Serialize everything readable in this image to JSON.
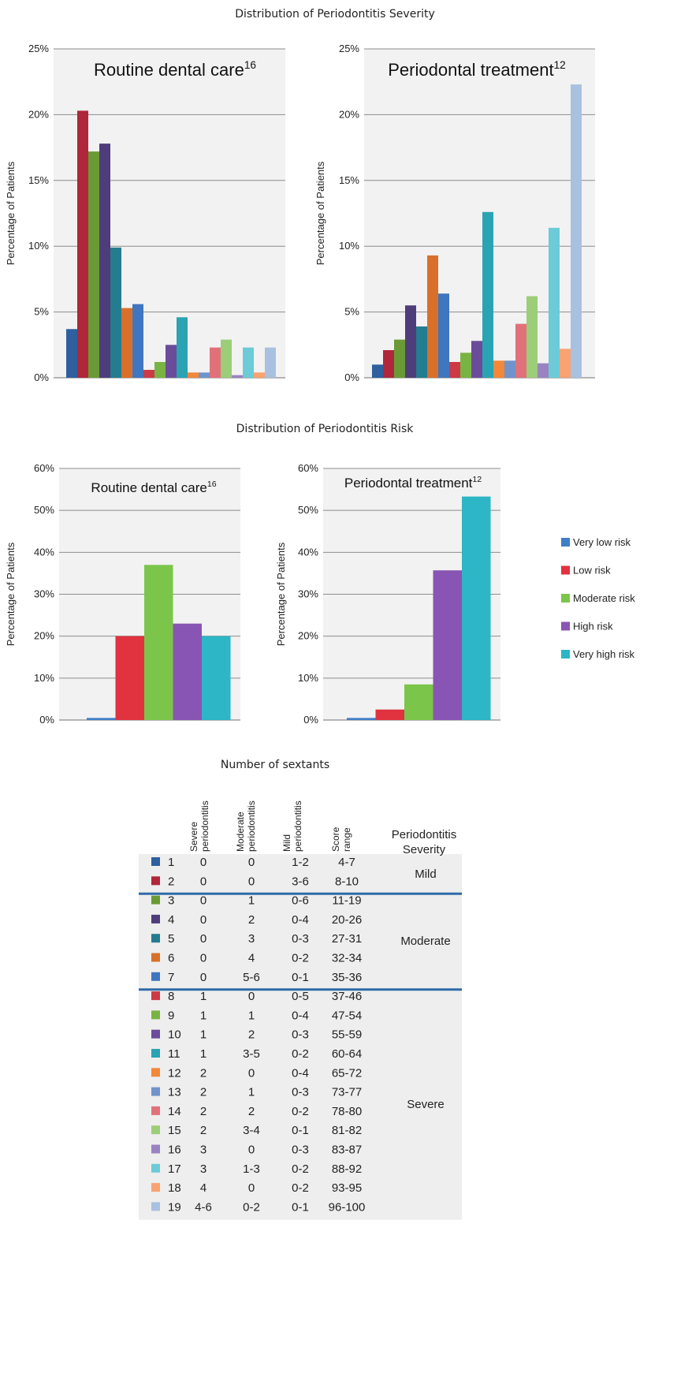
{
  "severity_title": "Distribution of Periodontitis Severity",
  "risk_title": "Distribution of Periodontitis Risk",
  "table_title": "Number of sextants",
  "y_axis_label": "Percentage of Patients",
  "colors": {
    "plot_bg": "#f2f2f2",
    "grid": "#8c8c8c",
    "table_band": "#eeeeee",
    "divider": "#2e6aa8",
    "category_colors": [
      "#2e5f9e",
      "#b0263a",
      "#6a9a36",
      "#4e3d7a",
      "#247d8e",
      "#d9702a",
      "#3f76c0",
      "#cc3a46",
      "#79b443",
      "#6b4c9a",
      "#2aa4b2",
      "#f28838",
      "#7093cb",
      "#e17179",
      "#9ccd78",
      "#9a83c1",
      "#6ccbd6",
      "#f9a272",
      "#a9c1e0"
    ],
    "risk_colors": [
      "#3f7fc8",
      "#e0323f",
      "#7cc54b",
      "#8855b4",
      "#2cb6c6"
    ]
  },
  "chart_data": [
    {
      "type": "bar",
      "title": "Distribution of Periodontitis Severity",
      "panel_title": "Routine dental care",
      "panel_sup": "16",
      "ylabel": "Percentage of Patients",
      "ylim": [
        0,
        25
      ],
      "yticks": [
        "0%",
        "5%",
        "10%",
        "15%",
        "20%",
        "25%"
      ],
      "grid": true,
      "categories": [
        "1",
        "2",
        "3",
        "4",
        "5",
        "6",
        "7",
        "8",
        "9",
        "10",
        "11",
        "12",
        "13",
        "14",
        "15",
        "16",
        "17",
        "18",
        "19"
      ],
      "values": [
        3.7,
        20.3,
        17.2,
        17.8,
        9.9,
        5.3,
        5.6,
        0.6,
        1.2,
        2.5,
        4.6,
        0.4,
        0.4,
        2.3,
        2.9,
        0.2,
        2.3,
        0.4,
        2.3
      ]
    },
    {
      "type": "bar",
      "title": "Distribution of Periodontitis Severity",
      "panel_title": "Periodontal treatment",
      "panel_sup": "12",
      "ylabel": "Percentage of Patients",
      "ylim": [
        0,
        25
      ],
      "yticks": [
        "0%",
        "5%",
        "10%",
        "15%",
        "20%",
        "25%"
      ],
      "grid": true,
      "categories": [
        "1",
        "2",
        "3",
        "4",
        "5",
        "6",
        "7",
        "8",
        "9",
        "10",
        "11",
        "12",
        "13",
        "14",
        "15",
        "16",
        "17",
        "18",
        "19"
      ],
      "values": [
        1.0,
        2.1,
        2.9,
        5.5,
        3.9,
        9.3,
        6.4,
        1.2,
        1.9,
        2.8,
        12.6,
        1.3,
        1.3,
        4.1,
        6.2,
        1.1,
        11.4,
        2.2,
        22.3
      ]
    },
    {
      "type": "bar",
      "title": "Distribution of Periodontitis Risk",
      "panel_title": "Routine dental care",
      "panel_sup": "16",
      "ylabel": "Percentage of Patients",
      "ylim": [
        0,
        60
      ],
      "yticks": [
        "0%",
        "10%",
        "20%",
        "30%",
        "40%",
        "50%",
        "60%"
      ],
      "grid": true,
      "categories": [
        "Very low risk",
        "Low risk",
        "Moderate risk",
        "High risk",
        "Very high risk"
      ],
      "values": [
        0.5,
        20.0,
        37.0,
        23.0,
        20.0
      ]
    },
    {
      "type": "bar",
      "title": "Distribution of Periodontitis Risk",
      "panel_title": "Periodontal treatment",
      "panel_sup": "12",
      "ylabel": "Percentage of Patients",
      "ylim": [
        0,
        60
      ],
      "yticks": [
        "0%",
        "10%",
        "20%",
        "30%",
        "40%",
        "50%",
        "60%"
      ],
      "grid": true,
      "categories": [
        "Very low risk",
        "Low risk",
        "Moderate risk",
        "High risk",
        "Very high risk"
      ],
      "values": [
        0.5,
        2.5,
        8.5,
        35.7,
        53.3
      ]
    },
    {
      "type": "table",
      "title": "Number of sextants",
      "columns": [
        "Severe periodontitis",
        "Moderate periodontitis",
        "Mild periodontitis",
        "Score range",
        "Periodontitis Severity"
      ],
      "rows": [
        {
          "id": "1",
          "severe": "0",
          "moderate": "0",
          "mild": "1-2",
          "score": "4-7"
        },
        {
          "id": "2",
          "severe": "0",
          "moderate": "0",
          "mild": "3-6",
          "score": "8-10"
        },
        {
          "id": "3",
          "severe": "0",
          "moderate": "1",
          "mild": "0-6",
          "score": "11-19"
        },
        {
          "id": "4",
          "severe": "0",
          "moderate": "2",
          "mild": "0-4",
          "score": "20-26"
        },
        {
          "id": "5",
          "severe": "0",
          "moderate": "3",
          "mild": "0-3",
          "score": "27-31"
        },
        {
          "id": "6",
          "severe": "0",
          "moderate": "4",
          "mild": "0-2",
          "score": "32-34"
        },
        {
          "id": "7",
          "severe": "0",
          "moderate": "5-6",
          "mild": "0-1",
          "score": "35-36"
        },
        {
          "id": "8",
          "severe": "1",
          "moderate": "0",
          "mild": "0-5",
          "score": "37-46"
        },
        {
          "id": "9",
          "severe": "1",
          "moderate": "1",
          "mild": "0-4",
          "score": "47-54"
        },
        {
          "id": "10",
          "severe": "1",
          "moderate": "2",
          "mild": "0-3",
          "score": "55-59"
        },
        {
          "id": "11",
          "severe": "1",
          "moderate": "3-5",
          "mild": "0-2",
          "score": "60-64"
        },
        {
          "id": "12",
          "severe": "2",
          "moderate": "0",
          "mild": "0-4",
          "score": "65-72"
        },
        {
          "id": "13",
          "severe": "2",
          "moderate": "1",
          "mild": "0-3",
          "score": "73-77"
        },
        {
          "id": "14",
          "severe": "2",
          "moderate": "2",
          "mild": "0-2",
          "score": "78-80"
        },
        {
          "id": "15",
          "severe": "2",
          "moderate": "3-4",
          "mild": "0-1",
          "score": "81-82"
        },
        {
          "id": "16",
          "severe": "3",
          "moderate": "0",
          "mild": "0-3",
          "score": "83-87"
        },
        {
          "id": "17",
          "severe": "3",
          "moderate": "1-3",
          "mild": "0-2",
          "score": "88-92"
        },
        {
          "id": "18",
          "severe": "4",
          "moderate": "0",
          "mild": "0-2",
          "score": "93-95"
        },
        {
          "id": "19",
          "severe": "4-6",
          "moderate": "0-2",
          "mild": "0-1",
          "score": "96-100"
        }
      ],
      "groups": [
        {
          "label": "Mild",
          "from": 1,
          "to": 2
        },
        {
          "label": "Moderate",
          "from": 3,
          "to": 7
        },
        {
          "label": "Severe",
          "from": 8,
          "to": 19
        }
      ]
    }
  ]
}
